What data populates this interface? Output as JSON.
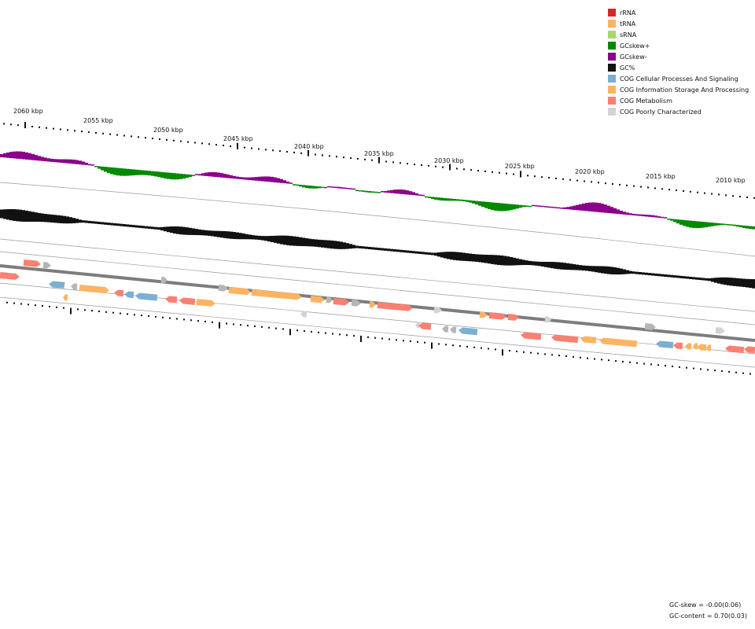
{
  "legend": [
    {
      "label": "rRNA",
      "color": "#d62728"
    },
    {
      "label": "tRNA",
      "color": "#fdb462"
    },
    {
      "label": "sRNA",
      "color": "#a6d96a"
    },
    {
      "label": "GCskew+",
      "color": "#008a00"
    },
    {
      "label": "GCskew-",
      "color": "#8b008b"
    },
    {
      "label": "GC%",
      "color": "#111111"
    },
    {
      "label": "COG Cellular Processes And Signaling",
      "color": "#7bafd4"
    },
    {
      "label": "COG Information Storage And Processing",
      "color": "#fdb462"
    },
    {
      "label": "COG Metabolism",
      "color": "#fa8072"
    },
    {
      "label": "COG Poorly Characterized",
      "color": "#d3d3d3"
    }
  ],
  "ticks": [
    "2060 kbp",
    "2055 kbp",
    "2050 kbp",
    "2045 kbp",
    "2040 kbp",
    "2035 kbp",
    "2030 kbp",
    "2025 kbp",
    "2020 kbp",
    "2015 kbp",
    "2010 kbp"
  ],
  "stats": {
    "gc_skew": "GC-skew = -0.00(0.06)",
    "gc_content": "GC-content = 0.70(0.03)"
  }
}
